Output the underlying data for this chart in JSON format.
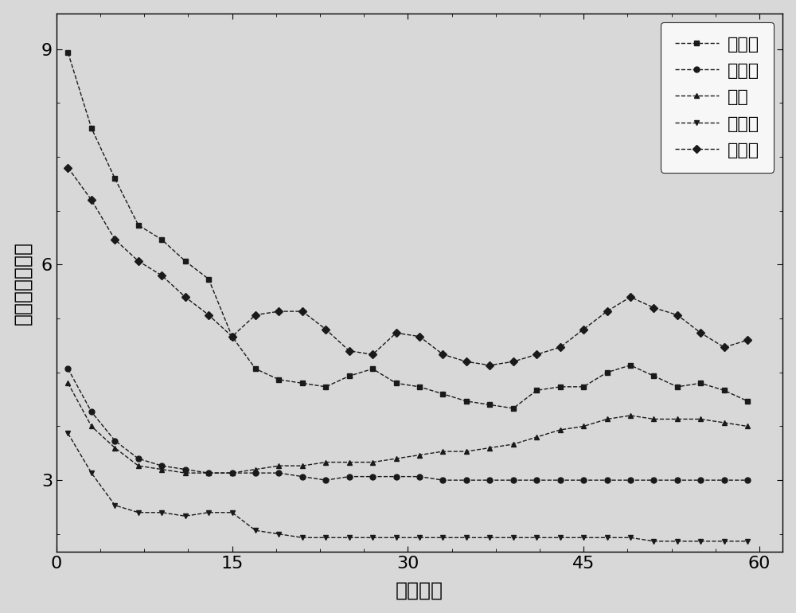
{
  "x": [
    1,
    3,
    5,
    7,
    9,
    11,
    13,
    15,
    17,
    19,
    21,
    23,
    25,
    27,
    29,
    31,
    33,
    35,
    37,
    39,
    41,
    43,
    45,
    47,
    49,
    51,
    53,
    55,
    57,
    59
  ],
  "soybean": [
    8.95,
    7.9,
    7.2,
    6.55,
    6.35,
    6.05,
    5.8,
    5.0,
    4.55,
    4.4,
    4.35,
    4.3,
    4.45,
    4.55,
    4.35,
    4.3,
    4.2,
    4.1,
    4.05,
    4.0,
    4.25,
    4.3,
    4.3,
    4.5,
    4.6,
    4.45,
    4.3,
    4.35,
    4.25,
    4.1
  ],
  "corn": [
    4.55,
    3.95,
    3.55,
    3.3,
    3.2,
    3.15,
    3.1,
    3.1,
    3.1,
    3.1,
    3.05,
    3.0,
    3.05,
    3.05,
    3.05,
    3.05,
    3.0,
    3.0,
    3.0,
    3.0,
    3.0,
    3.0,
    3.0,
    3.0,
    3.0,
    3.0,
    3.0,
    3.0,
    3.0,
    3.0
  ],
  "sesame": [
    4.35,
    3.75,
    3.45,
    3.2,
    3.15,
    3.1,
    3.1,
    3.1,
    3.15,
    3.2,
    3.2,
    3.25,
    3.25,
    3.25,
    3.3,
    3.35,
    3.4,
    3.4,
    3.45,
    3.5,
    3.6,
    3.7,
    3.75,
    3.85,
    3.9,
    3.85,
    3.85,
    3.85,
    3.8,
    3.75
  ],
  "rice": [
    3.65,
    3.1,
    2.65,
    2.55,
    2.55,
    2.5,
    2.55,
    2.55,
    2.3,
    2.25,
    2.2,
    2.2,
    2.2,
    2.2,
    2.2,
    2.2,
    2.2,
    2.2,
    2.2,
    2.2,
    2.2,
    2.2,
    2.2,
    2.2,
    2.2,
    2.15,
    2.15,
    2.15,
    2.15,
    2.15
  ],
  "sunflower": [
    7.35,
    6.9,
    6.35,
    6.05,
    5.85,
    5.55,
    5.3,
    5.0,
    5.3,
    5.35,
    5.35,
    5.1,
    4.8,
    4.75,
    5.05,
    5.0,
    4.75,
    4.65,
    4.6,
    4.65,
    4.75,
    4.85,
    5.1,
    5.35,
    5.55,
    5.4,
    5.3,
    5.05,
    4.85,
    4.95
  ],
  "xlim": [
    0,
    62
  ],
  "ylim": [
    2.0,
    9.5
  ],
  "xticks": [
    0,
    15,
    30,
    45,
    60
  ],
  "yticks": [
    3,
    6,
    9
  ],
  "xlabel": "窗口大小",
  "ylabel": "预测均方根误差",
  "legend_labels": [
    "大豆油",
    "玉米油",
    "香油",
    "稻米油",
    "葵花油"
  ],
  "color": "#1a1a1a",
  "bg_color": "#d8d8d8",
  "linewidth": 1.0,
  "markersize": 5
}
